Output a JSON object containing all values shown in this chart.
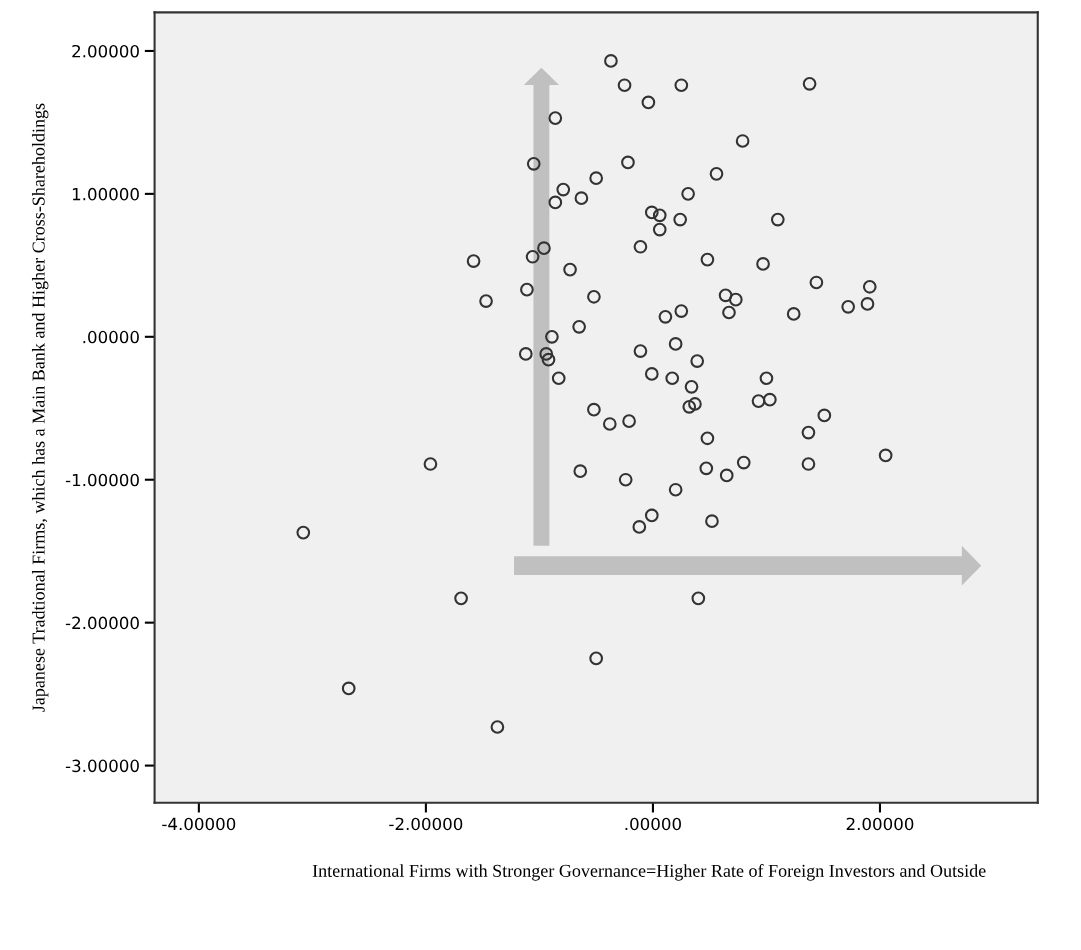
{
  "chart_data": {
    "type": "scatter",
    "xlabel": "International Firms with Stronger Governance=Higher Rate of Foreign Investors and Outside",
    "ylabel": "Japanese Tradtional Firms, which has a Main Bank and Higher Cross-Shareholdings",
    "xlim": [
      -4.39,
      3.39
    ],
    "ylim": [
      -3.26,
      2.27
    ],
    "xticks": [
      {
        "value": -4,
        "label": "-4.00000"
      },
      {
        "value": -2,
        "label": "-2.00000"
      },
      {
        "value": 0,
        "label": ".00000"
      },
      {
        "value": 2,
        "label": "2.00000"
      }
    ],
    "yticks": [
      {
        "value": -3,
        "label": "-3.00000"
      },
      {
        "value": -2,
        "label": "-2.00000"
      },
      {
        "value": -1,
        "label": "-1.00000"
      },
      {
        "value": 0,
        "label": ".00000"
      },
      {
        "value": 1,
        "label": "1.00000"
      },
      {
        "value": 2,
        "label": "2.00000"
      }
    ],
    "marker": "circle",
    "grid": false,
    "legend": false,
    "series": [
      {
        "color": "#333333",
        "x": [
          -0.86,
          -1.05,
          -0.79,
          -0.86,
          -0.63,
          -0.5,
          -1.58,
          -0.96,
          -1.06,
          -0.73,
          -1.11,
          -1.47,
          -0.52,
          -0.65,
          -0.89,
          -1.12,
          -0.94,
          -0.92,
          -0.83,
          -0.52,
          -0.37,
          -0.25,
          0.25,
          -0.04,
          1.38,
          0.79,
          -0.22,
          0.56,
          0.31,
          -0.01,
          0.06,
          0.24,
          1.1,
          0.06,
          -0.11,
          0.48,
          0.97,
          1.44,
          1.91,
          0.64,
          0.73,
          0.67,
          1.24,
          1.72,
          1.89,
          0.25,
          0.11,
          0.2,
          -0.11,
          0.39,
          -0.01,
          0.17,
          0.34,
          1.0,
          0.32,
          0.37,
          0.93,
          1.03,
          1.51,
          -0.38,
          -0.21,
          1.37,
          0.48,
          2.05,
          -0.24,
          0.47,
          0.65,
          0.8,
          1.37,
          0.2,
          -0.01,
          -0.12,
          0.52,
          0.4,
          -0.5,
          -1.96,
          -0.64,
          -3.08,
          -1.69,
          -2.68,
          -1.37
        ],
        "values": [
          1.53,
          1.21,
          1.03,
          0.94,
          0.97,
          1.11,
          0.53,
          0.62,
          0.56,
          0.47,
          0.33,
          0.25,
          0.28,
          0.07,
          0.0,
          -0.12,
          -0.12,
          -0.16,
          -0.29,
          -0.51,
          1.93,
          1.76,
          1.76,
          1.64,
          1.77,
          1.37,
          1.22,
          1.14,
          1.0,
          0.87,
          0.85,
          0.82,
          0.82,
          0.75,
          0.63,
          0.54,
          0.51,
          0.38,
          0.35,
          0.29,
          0.26,
          0.17,
          0.16,
          0.21,
          0.23,
          0.18,
          0.14,
          -0.05,
          -0.1,
          -0.17,
          -0.26,
          -0.29,
          -0.35,
          -0.29,
          -0.49,
          -0.47,
          -0.45,
          -0.44,
          -0.55,
          -0.61,
          -0.59,
          -0.67,
          -0.71,
          -0.83,
          -1.0,
          -0.92,
          -0.97,
          -0.88,
          -0.89,
          -1.07,
          -1.25,
          -1.33,
          -1.29,
          -1.83,
          -2.25,
          -0.89,
          -0.94,
          -1.37,
          -1.83,
          -2.46,
          -2.73
        ]
      }
    ]
  }
}
